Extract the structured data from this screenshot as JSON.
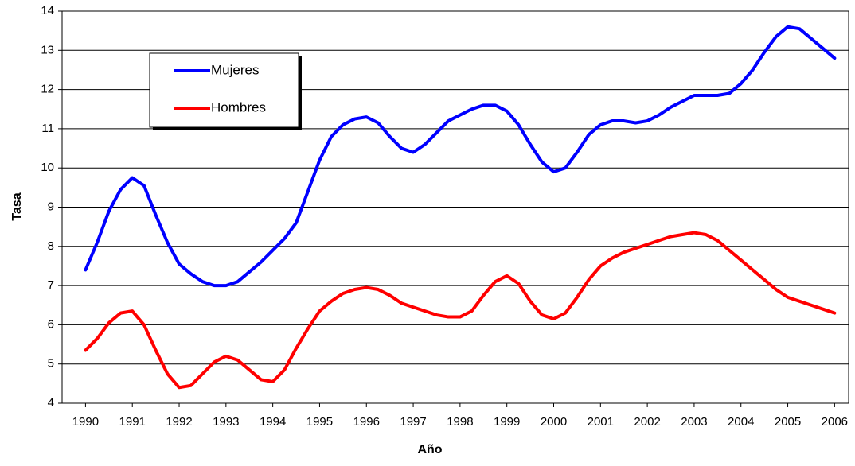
{
  "chart_data": {
    "type": "line",
    "x_label": "Año",
    "y_label": "Tasa",
    "x": [
      1990,
      1990.25,
      1990.5,
      1990.75,
      1991,
      1991.25,
      1991.5,
      1991.75,
      1992,
      1992.25,
      1992.5,
      1992.75,
      1993,
      1993.25,
      1993.5,
      1993.75,
      1994,
      1994.25,
      1994.5,
      1994.75,
      1995,
      1995.25,
      1995.5,
      1995.75,
      1996,
      1996.25,
      1996.5,
      1996.75,
      1997,
      1997.25,
      1997.5,
      1997.75,
      1998,
      1998.25,
      1998.5,
      1998.75,
      1999,
      1999.25,
      1999.5,
      1999.75,
      2000,
      2000.25,
      2000.5,
      2000.75,
      2001,
      2001.25,
      2001.5,
      2001.75,
      2002,
      2002.25,
      2002.5,
      2002.75,
      2003,
      2003.25,
      2003.5,
      2003.75,
      2004,
      2004.25,
      2004.5,
      2004.75,
      2005,
      2005.25,
      2005.5,
      2005.75,
      2006
    ],
    "series": [
      {
        "name": "Mujeres",
        "color": "#0000ff",
        "values": [
          7.4,
          8.1,
          8.9,
          9.45,
          9.75,
          9.55,
          8.8,
          8.1,
          7.55,
          7.3,
          7.1,
          7.0,
          7.0,
          7.1,
          7.35,
          7.6,
          7.9,
          8.2,
          8.6,
          9.4,
          10.2,
          10.8,
          11.1,
          11.25,
          11.3,
          11.15,
          10.8,
          10.5,
          10.4,
          10.6,
          10.9,
          11.2,
          11.35,
          11.5,
          11.6,
          11.6,
          11.45,
          11.1,
          10.6,
          10.15,
          9.9,
          10.0,
          10.4,
          10.85,
          11.1,
          11.2,
          11.2,
          11.15,
          11.2,
          11.35,
          11.55,
          11.7,
          11.85,
          11.85,
          11.85,
          11.9,
          12.15,
          12.5,
          12.95,
          13.35,
          13.6,
          13.55,
          13.3,
          13.05,
          12.8
        ]
      },
      {
        "name": "Hombres",
        "color": "#ff0000",
        "values": [
          5.35,
          5.65,
          6.05,
          6.3,
          6.35,
          6.0,
          5.35,
          4.75,
          4.4,
          4.45,
          4.75,
          5.05,
          5.2,
          5.1,
          4.85,
          4.6,
          4.55,
          4.85,
          5.4,
          5.9,
          6.35,
          6.6,
          6.8,
          6.9,
          6.95,
          6.9,
          6.75,
          6.55,
          6.45,
          6.35,
          6.25,
          6.2,
          6.2,
          6.35,
          6.75,
          7.1,
          7.25,
          7.05,
          6.6,
          6.25,
          6.15,
          6.3,
          6.7,
          7.15,
          7.5,
          7.7,
          7.85,
          7.95,
          8.05,
          8.15,
          8.25,
          8.3,
          8.35,
          8.3,
          8.15,
          7.9,
          7.65,
          7.4,
          7.15,
          6.9,
          6.7,
          6.6,
          6.5,
          6.4,
          6.3
        ]
      }
    ],
    "xlim": [
      1989.5,
      2006.3
    ],
    "xticks": [
      1990,
      1991,
      1992,
      1993,
      1994,
      1995,
      1996,
      1997,
      1998,
      1999,
      2000,
      2001,
      2002,
      2003,
      2004,
      2005,
      2006
    ],
    "ylim": [
      4,
      14
    ],
    "yticks": [
      4,
      5,
      6,
      7,
      8,
      9,
      10,
      11,
      12,
      13,
      14
    ],
    "grid": true,
    "legend": "upper left"
  }
}
